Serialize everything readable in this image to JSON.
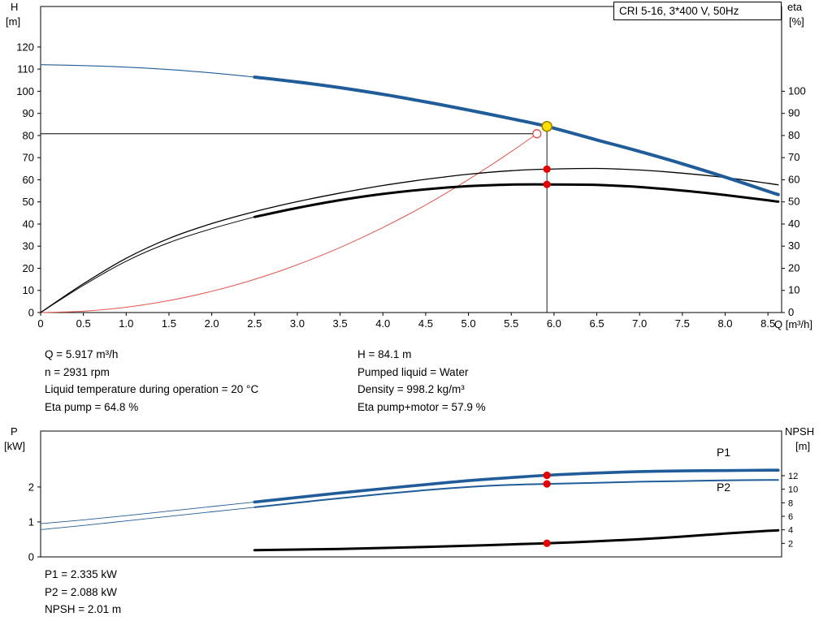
{
  "info": {
    "left": [
      "Q = 5.917 m³/h",
      "n = 2931 rpm",
      "Liquid temperature during operation = 20 °C",
      "Eta pump = 64.8 %"
    ],
    "right": [
      "H = 84.1 m",
      "Pumped liquid = Water",
      "Density = 998.2 kg/m³",
      "Eta pump+motor = 57.9 %"
    ],
    "bottom": [
      "P1 = 2.335 kW",
      "P2 = 2.088 kW",
      "NPSH = 2.01 m"
    ]
  },
  "chart_data": [
    {
      "type": "line",
      "title": "CRI 5-16, 3*400 V, 50Hz",
      "xlabel": "Q [m³/h]",
      "axis_labels": {
        "left": [
          "H",
          "[m]"
        ],
        "right": [
          "eta",
          "[%]"
        ]
      },
      "xlim": [
        0,
        8.66
      ],
      "ylim_left": [
        0,
        138.3
      ],
      "ylim_right": [
        0,
        138.3
      ],
      "x_ticks": [
        "0",
        "0.5",
        "1.0",
        "1.5",
        "2.0",
        "2.5",
        "3.0",
        "3.5",
        "4.0",
        "4.5",
        "5.0",
        "5.5",
        "6.0",
        "6.5",
        "7.0",
        "7.5",
        "8.0",
        "8.5"
      ],
      "y_ticks_left": [
        "0",
        "10",
        "20",
        "30",
        "40",
        "50",
        "60",
        "70",
        "80",
        "90",
        "100",
        "110",
        "120"
      ],
      "y_ticks_right": [
        "0",
        "10",
        "20",
        "30",
        "40",
        "50",
        "60",
        "70",
        "80",
        "90",
        "100"
      ],
      "grid": false,
      "guides": [
        {
          "x": 5.917,
          "y1": 0,
          "y2": 84.1
        },
        {
          "y": 80.8,
          "x1": 0,
          "x2": 5.8
        }
      ],
      "series": [
        {
          "name": "system-curve",
          "color": "#e2564e",
          "width": 1,
          "points": [
            [
              0,
              0
            ],
            [
              0.5,
              0.6
            ],
            [
              1,
              2.4
            ],
            [
              1.5,
              5.4
            ],
            [
              2,
              9.6
            ],
            [
              2.5,
              15
            ],
            [
              3,
              21.6
            ],
            [
              3.5,
              29.4
            ],
            [
              4,
              38.4
            ],
            [
              4.5,
              48.6
            ],
            [
              5,
              60.1
            ],
            [
              5.5,
              72.7
            ],
            [
              5.8,
              80.8
            ]
          ]
        },
        {
          "name": "eta-pump",
          "color": "#000000",
          "width": 1.3,
          "points": [
            [
              0,
              0
            ],
            [
              0.5,
              13
            ],
            [
              1,
              24.5
            ],
            [
              1.5,
              33.5
            ],
            [
              2,
              40.2
            ],
            [
              2.5,
              45.6
            ],
            [
              3,
              50.1
            ],
            [
              3.5,
              54
            ],
            [
              4,
              57.4
            ],
            [
              4.5,
              60.2
            ],
            [
              5,
              62.5
            ],
            [
              5.5,
              64.1
            ],
            [
              5.917,
              64.8
            ],
            [
              6.5,
              65.1
            ],
            [
              7,
              64.4
            ],
            [
              7.5,
              63
            ],
            [
              8,
              61
            ],
            [
              8.5,
              58.4
            ],
            [
              8.62,
              57.7
            ]
          ]
        },
        {
          "name": "eta-pump-motor",
          "color": "#000000",
          "width": 3,
          "lead": {
            "until": 2.5,
            "width": 1
          },
          "points": [
            [
              0,
              0
            ],
            [
              0.5,
              12.3
            ],
            [
              1,
              23.2
            ],
            [
              1.5,
              31.6
            ],
            [
              2,
              37.9
            ],
            [
              2.5,
              43.2
            ],
            [
              3,
              47.3
            ],
            [
              3.5,
              50.8
            ],
            [
              4,
              53.6
            ],
            [
              4.5,
              55.7
            ],
            [
              5,
              57.1
            ],
            [
              5.5,
              57.8
            ],
            [
              5.917,
              57.9
            ],
            [
              6.5,
              57.7
            ],
            [
              7,
              56.7
            ],
            [
              7.5,
              55.1
            ],
            [
              8,
              53.1
            ],
            [
              8.5,
              50.7
            ],
            [
              8.62,
              50.1
            ]
          ]
        },
        {
          "name": "head-curve",
          "color": "#1f5c99",
          "width": 4,
          "lead": {
            "until": 2.5,
            "width": 1.1
          },
          "points": [
            [
              0,
              112
            ],
            [
              0.5,
              111.6
            ],
            [
              1,
              110.9
            ],
            [
              1.5,
              109.8
            ],
            [
              2,
              108.3
            ],
            [
              2.5,
              106.4
            ],
            [
              3,
              104.2
            ],
            [
              3.5,
              101.6
            ],
            [
              4,
              98.6
            ],
            [
              4.5,
              95.2
            ],
            [
              5,
              91.5
            ],
            [
              5.5,
              87.6
            ],
            [
              5.917,
              84.1
            ],
            [
              6.5,
              78
            ],
            [
              7,
              72.8
            ],
            [
              7.5,
              67.2
            ],
            [
              8,
              61.2
            ],
            [
              8.5,
              54.8
            ],
            [
              8.62,
              53.3
            ]
          ]
        }
      ],
      "markers": [
        {
          "name": "requested-duty-point",
          "x": 5.8,
          "y": 80.8,
          "r": 5,
          "fill": "#ffffff",
          "stroke": "#e2564e",
          "sw": 1.4
        },
        {
          "name": "eta-pump-point",
          "x": 5.917,
          "y": 64.8,
          "r": 4.6,
          "fill": "#e60000"
        },
        {
          "name": "eta-pump-motor-point",
          "x": 5.917,
          "y": 57.9,
          "r": 4.6,
          "fill": "#e60000"
        },
        {
          "name": "duty-point",
          "x": 5.917,
          "y": 84.1,
          "r": 6,
          "fill": "#ffdf00",
          "stroke": "#9b8300",
          "sw": 1.6
        }
      ]
    },
    {
      "type": "line",
      "title": "",
      "xlabel": "",
      "axis_labels": {
        "left": [
          "P",
          "[kW]"
        ],
        "right": [
          "NPSH",
          "[m]"
        ]
      },
      "xlim": [
        0,
        8.66
      ],
      "ylim_left": [
        0,
        3.6
      ],
      "ylim_right": [
        0,
        18.6
      ],
      "x_ticks": [],
      "y_ticks_left": [
        "0",
        "1",
        "2"
      ],
      "y_ticks_right": [
        "2",
        "4",
        "6",
        "8",
        "10",
        "12"
      ],
      "y_right_font": 11,
      "grid": false,
      "guides": [],
      "series": [
        {
          "name": "npsh-curve",
          "color": "#000000",
          "width": 3,
          "axis": "right",
          "points": [
            [
              2.5,
              1
            ],
            [
              3,
              1.08
            ],
            [
              3.5,
              1.18
            ],
            [
              4,
              1.32
            ],
            [
              4.5,
              1.48
            ],
            [
              5,
              1.65
            ],
            [
              5.5,
              1.85
            ],
            [
              5.917,
              2.01
            ],
            [
              6.5,
              2.3
            ],
            [
              7,
              2.62
            ],
            [
              7.5,
              3
            ],
            [
              8,
              3.45
            ],
            [
              8.5,
              3.85
            ],
            [
              8.62,
              3.92
            ]
          ]
        },
        {
          "name": "p2-curve",
          "color": "#1f5c99",
          "width": 2,
          "lead": {
            "until": 2.5,
            "width": 0.9
          },
          "points": [
            [
              0,
              0.78
            ],
            [
              0.5,
              0.9
            ],
            [
              1,
              1.03
            ],
            [
              1.5,
              1.16
            ],
            [
              2,
              1.29
            ],
            [
              2.5,
              1.42
            ],
            [
              3,
              1.55
            ],
            [
              3.5,
              1.68
            ],
            [
              4,
              1.8
            ],
            [
              4.5,
              1.91
            ],
            [
              5,
              2
            ],
            [
              5.5,
              2.06
            ],
            [
              5.917,
              2.088
            ],
            [
              6.5,
              2.12
            ],
            [
              7,
              2.15
            ],
            [
              7.5,
              2.17
            ],
            [
              8,
              2.19
            ],
            [
              8.5,
              2.2
            ],
            [
              8.62,
              2.2
            ]
          ]
        },
        {
          "name": "p1-curve",
          "color": "#1f5c99",
          "width": 3.6,
          "lead": {
            "until": 2.5,
            "width": 0.9
          },
          "points": [
            [
              0,
              0.95
            ],
            [
              0.5,
              1.06
            ],
            [
              1,
              1.18
            ],
            [
              1.5,
              1.31
            ],
            [
              2,
              1.44
            ],
            [
              2.5,
              1.57
            ],
            [
              3,
              1.7
            ],
            [
              3.5,
              1.83
            ],
            [
              4,
              1.95
            ],
            [
              4.5,
              2.07
            ],
            [
              5,
              2.18
            ],
            [
              5.5,
              2.27
            ],
            [
              5.917,
              2.335
            ],
            [
              6.5,
              2.4
            ],
            [
              7,
              2.44
            ],
            [
              7.5,
              2.46
            ],
            [
              8,
              2.47
            ],
            [
              8.5,
              2.48
            ],
            [
              8.62,
              2.48
            ]
          ]
        }
      ],
      "markers": [
        {
          "name": "p1-point",
          "x": 5.917,
          "y": 2.335,
          "r": 4.6,
          "fill": "#e60000"
        },
        {
          "name": "p2-point",
          "x": 5.917,
          "y": 2.088,
          "r": 4.6,
          "fill": "#e60000"
        },
        {
          "name": "npsh-point",
          "x": 5.917,
          "y": 2.01,
          "axis": "right",
          "r": 4.6,
          "fill": "#e60000"
        }
      ],
      "curve_labels": [
        {
          "text": "P1",
          "x": 7.9,
          "y": 2.88,
          "color": "#1f5c99"
        },
        {
          "text": "P2",
          "x": 7.9,
          "y": 1.88,
          "color": "#1f5c99"
        }
      ]
    }
  ]
}
